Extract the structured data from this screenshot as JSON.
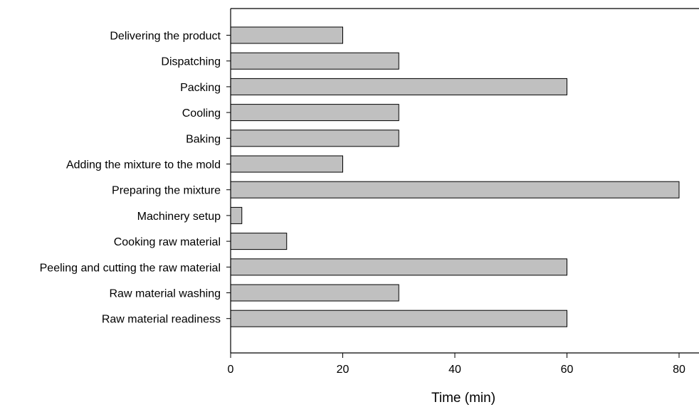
{
  "chart_data": {
    "type": "bar",
    "orientation": "horizontal",
    "title": "",
    "xlabel": "Time (min)",
    "ylabel": "",
    "xlim": [
      0,
      80
    ],
    "xticks": [
      0,
      20,
      40,
      60,
      80
    ],
    "grid": false,
    "bar_color": "#c0c0c0",
    "bar_edge_color": "#000000",
    "categories": [
      "Delivering the product",
      "Dispatching",
      "Packing",
      "Cooling",
      "Baking",
      "Adding the mixture to the mold",
      "Preparing the mixture",
      "Machinery setup",
      "Cooking raw material",
      "Peeling and cutting the raw material",
      "Raw material washing",
      "Raw material readiness"
    ],
    "values": [
      20,
      30,
      60,
      30,
      30,
      20,
      80,
      2,
      10,
      60,
      30,
      60
    ]
  }
}
